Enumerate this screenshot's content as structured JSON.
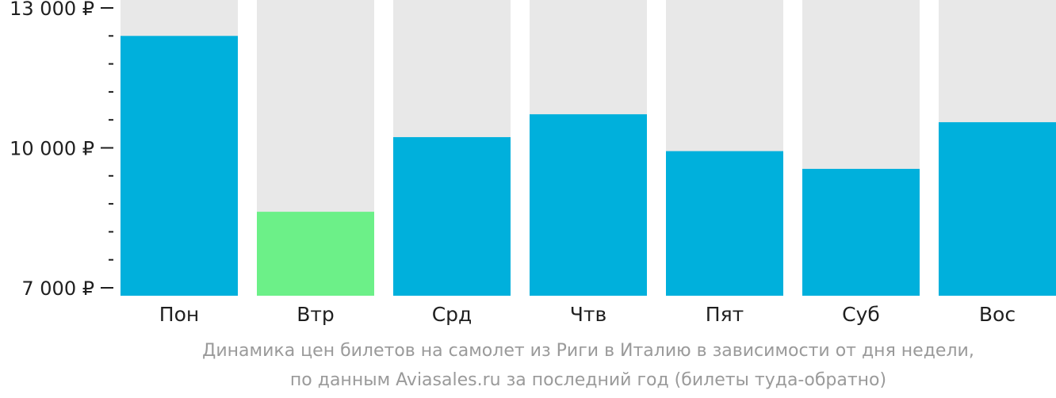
{
  "chart_data": {
    "type": "bar",
    "categories": [
      "Пон",
      "Втр",
      "Срд",
      "Чтв",
      "Пят",
      "Суб",
      "Вос"
    ],
    "values": [
      12400,
      8630,
      10230,
      10720,
      9930,
      9550,
      10550
    ],
    "ylim": [
      7000,
      13000
    ],
    "yticks": [
      {
        "value": 13000,
        "label": "13 000 ₽"
      },
      {
        "value": 10000,
        "label": "10 000 ₽"
      },
      {
        "value": 7000,
        "label": "7 000 ₽"
      }
    ],
    "minor_tick_step": 600,
    "highlight_index": 1,
    "caption": [
      "Динамика цен билетов на самолет из Риги в Италию в зависимости от дня недели,",
      "по данным Aviasales.ru за последний год (билеты туда-обратно)"
    ],
    "colors": {
      "bar": "#00b0dc",
      "highlight": "#6cf088",
      "track": "#e8e8e8",
      "axis": "#1f1f1f"
    },
    "grid": false,
    "legend": "none"
  }
}
